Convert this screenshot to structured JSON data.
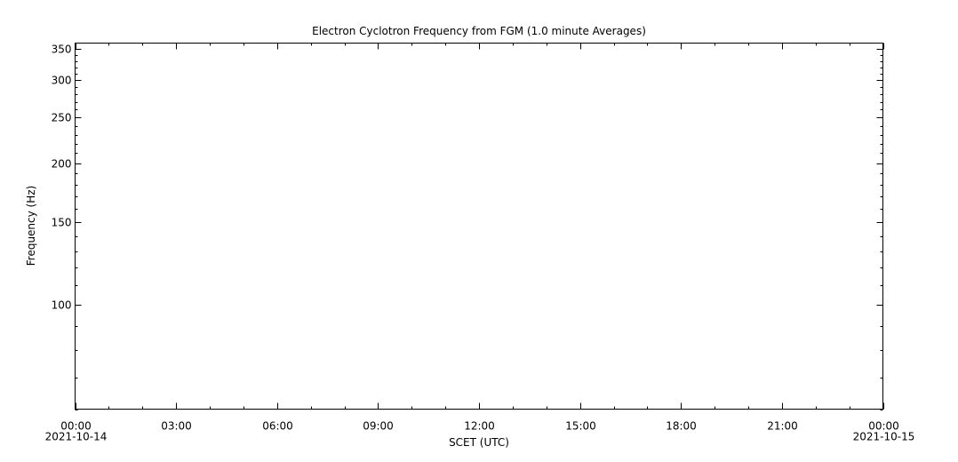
{
  "chart_data": {
    "type": "line",
    "title": "Electron Cyclotron Frequency from FGM (1.0 minute Averages)",
    "xlabel": "SCET (UTC)",
    "ylabel": "Frequency (Hz)",
    "y_scale": "log",
    "ylim": [
      60,
      360
    ],
    "y_ticks": [
      {
        "value": 100,
        "label": "100"
      },
      {
        "value": 150,
        "label": "150"
      },
      {
        "value": 200,
        "label": "200"
      },
      {
        "value": 250,
        "label": "250"
      },
      {
        "value": 300,
        "label": "300"
      },
      {
        "value": 350,
        "label": "350"
      }
    ],
    "y_minor_ticks": [
      60,
      70,
      80,
      90,
      110,
      120,
      130,
      140,
      160,
      170,
      180,
      190,
      210,
      220,
      230,
      240,
      260,
      270,
      280,
      290,
      310,
      320,
      330,
      340
    ],
    "xlim": [
      "2021-10-14 00:00",
      "2021-10-15 00:00"
    ],
    "x_ticks": [
      {
        "value": "2021-10-14 00:00",
        "label": "00:00",
        "date_label": "2021-10-14"
      },
      {
        "value": "2021-10-14 03:00",
        "label": "03:00",
        "date_label": ""
      },
      {
        "value": "2021-10-14 06:00",
        "label": "06:00",
        "date_label": ""
      },
      {
        "value": "2021-10-14 09:00",
        "label": "09:00",
        "date_label": ""
      },
      {
        "value": "2021-10-14 12:00",
        "label": "12:00",
        "date_label": ""
      },
      {
        "value": "2021-10-14 15:00",
        "label": "15:00",
        "date_label": ""
      },
      {
        "value": "2021-10-14 18:00",
        "label": "18:00",
        "date_label": ""
      },
      {
        "value": "2021-10-14 21:00",
        "label": "21:00",
        "date_label": ""
      },
      {
        "value": "2021-10-15 00:00",
        "label": "00:00",
        "date_label": "2021-10-15"
      }
    ],
    "x_minor_tick_interval_hours": 1,
    "series": [],
    "grid": false,
    "colors": {
      "axis": "#000000",
      "background": "#ffffff"
    }
  }
}
